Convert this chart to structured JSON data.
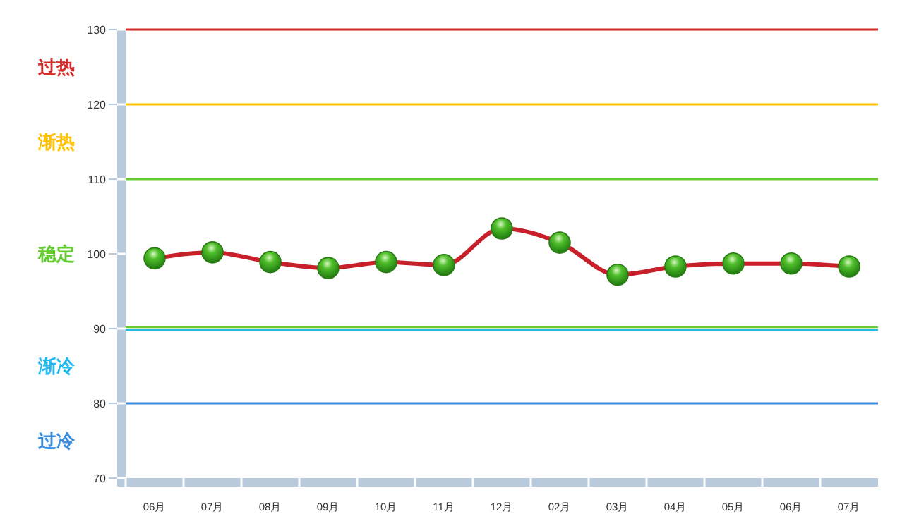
{
  "chart_data": {
    "type": "line",
    "categories": [
      "06月",
      "07月",
      "08月",
      "09月",
      "10月",
      "11月",
      "12月",
      "02月",
      "03月",
      "04月",
      "05月",
      "06月",
      "07月"
    ],
    "series": [
      {
        "color": "#c8202a",
        "values": [
          99.4,
          100.2,
          98.9,
          98.1,
          98.9,
          98.5,
          103.4,
          101.5,
          97.2,
          98.3,
          98.7,
          98.7,
          98.3
        ]
      }
    ],
    "marker": "circle",
    "ylim": [
      70,
      130
    ],
    "yticks": [
      70,
      80,
      90,
      100,
      110,
      120,
      130
    ],
    "ref_lines": [
      {
        "axis": "y",
        "value": 130,
        "color": "#d42a2a"
      },
      {
        "axis": "y",
        "value": 120,
        "color": "#ffc000"
      },
      {
        "axis": "y",
        "value": 110,
        "color": "#66cc33"
      },
      {
        "axis": "y",
        "value": 90,
        "color": "#66cc33"
      },
      {
        "axis": "y",
        "value": 90,
        "color": "#22b8f0"
      },
      {
        "axis": "y",
        "value": 80,
        "color": "#3a8ee0"
      }
    ],
    "annotations": [
      "过热",
      "渐热",
      "稳定",
      "渐冷",
      "过冷"
    ]
  }
}
